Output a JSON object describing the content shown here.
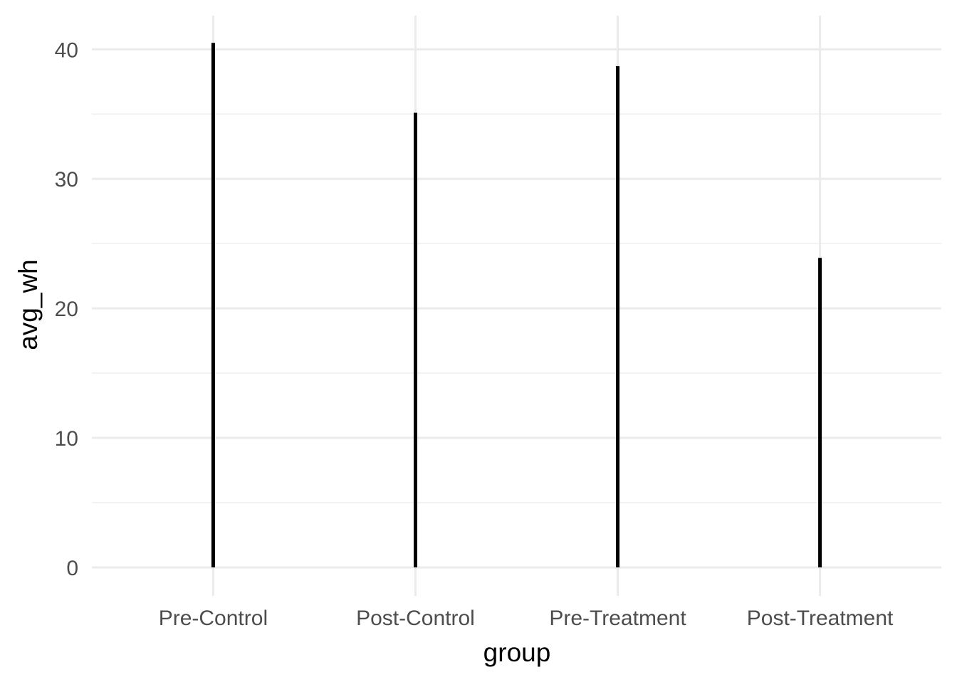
{
  "chart_data": {
    "type": "bar",
    "categories": [
      "Pre-Control",
      "Post-Control",
      "Pre-Treatment",
      "Post-Treatment"
    ],
    "values": [
      40.5,
      35.1,
      38.7,
      23.9
    ],
    "xlabel": "group",
    "ylabel": "avg_wh",
    "ylim": [
      -2.2,
      42.6
    ],
    "yticks": [
      0,
      10,
      20,
      30,
      40
    ],
    "y_minor_ticks": [
      5,
      15,
      25,
      35
    ],
    "grid": true,
    "legend": "none",
    "colors": {
      "bar": "#000000",
      "grid_major": "#ebebeb",
      "grid_minor": "#f2f2f2",
      "tick_text": "#4d4d4d",
      "axis_title": "#000000"
    }
  }
}
